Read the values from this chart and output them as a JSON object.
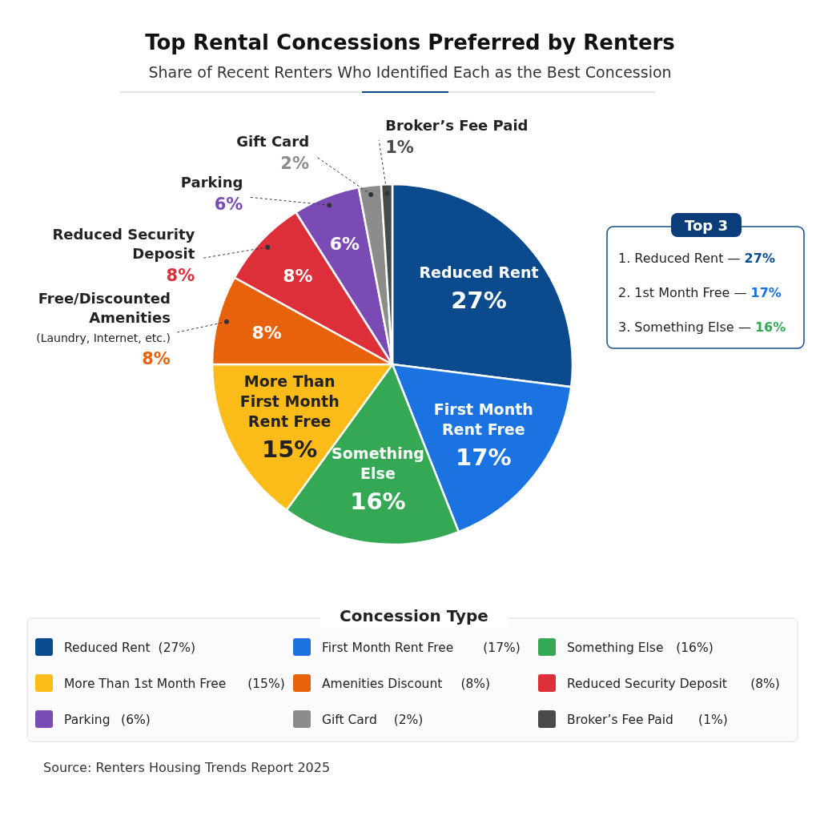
{
  "chart_data": {
    "type": "pie",
    "title": "Top Rental Concessions Preferred by Renters",
    "subtitle": "Share of Recent Renters Who Identified Each as the Best Concession",
    "legend_title": "Concession Type",
    "legend": "bottom",
    "categories": [
      "Reduced Rent",
      "First Month Rent Free",
      "Something Else",
      "More Than 1st Month Free",
      "Amenities Discount",
      "Reduced Security Deposit",
      "Parking",
      "Gift Card",
      "Broker’s Fee Paid"
    ],
    "values": [
      27,
      17,
      16,
      15,
      8,
      8,
      6,
      2,
      1
    ],
    "value_labels": [
      "27%",
      "17%",
      "16%",
      "15%",
      "8%",
      "8%",
      "6%",
      "2%",
      "1%"
    ],
    "colors": [
      "#0b4a8c",
      "#1a73e0",
      "#34a853",
      "#fbbc1a",
      "#e8620c",
      "#dc2f3a",
      "#7b4bb5",
      "#8c8c8c",
      "#4a4a4a"
    ],
    "annotations": [
      "More Than First Month Rent Free",
      "Free/Discounted Amenities",
      "(Laundry, Internet, etc.)",
      "Top 3",
      "Source: Renters Housing Trends Report 2025",
      "1. Reduced Rent — 27%",
      "2. 1st Month Free — 17%",
      "3. Something Else — 16%",
      "(27%)",
      "(17%)",
      "(16%)",
      "(15%)",
      "(8%)",
      "(8%)",
      "(6%)",
      "(2%)",
      "(1%)"
    ]
  }
}
